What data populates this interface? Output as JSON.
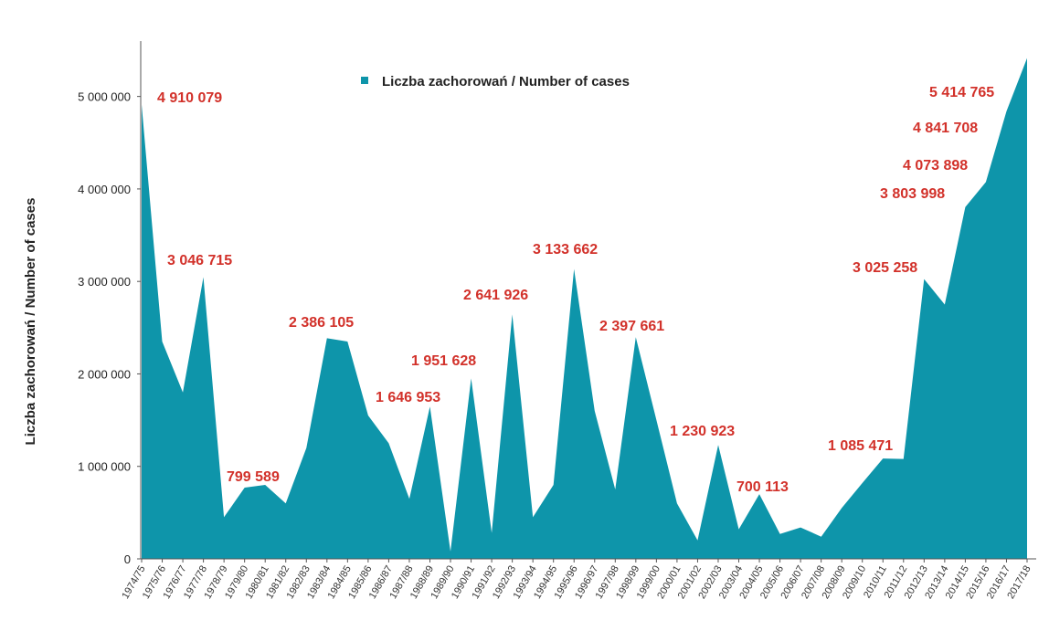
{
  "colors": {
    "area": "#0e95aa",
    "label": "#d2312a",
    "axis": "#555555"
  },
  "legend": {
    "label": "Liczba zachorowań / Number of cases"
  },
  "ylabel": "Liczba zachorowań  /  Number of cases",
  "chart_data": {
    "type": "area",
    "title": "",
    "xlabel": "",
    "ylabel": "Liczba zachorowań  /  Number of cases",
    "ylim": [
      0,
      5500000
    ],
    "yticks": [
      0,
      1000000,
      2000000,
      3000000,
      4000000,
      5000000
    ],
    "ytick_labels": [
      "0",
      "1 000 000",
      "2 000 000",
      "3 000 000",
      "4 000 000",
      "5 000 000"
    ],
    "grid": false,
    "legend_placement": "top-center",
    "x": [
      "1974/75",
      "1975/76",
      "1976/77",
      "1977/78",
      "1978/79",
      "1979/80",
      "1980/81",
      "1981/82",
      "1982/83",
      "1983/84",
      "1984/85",
      "1985/86",
      "1986/87",
      "1987/88",
      "1988/89",
      "1989/90",
      "1990/91",
      "1991/92",
      "1992/93",
      "1993/94",
      "1994/95",
      "1995/96",
      "1996/97",
      "1997/98",
      "1998/99",
      "1999/00",
      "2000/01",
      "2001/02",
      "2002/03",
      "2003/04",
      "2004/05",
      "2005/06",
      "2006/07",
      "2007/08",
      "2008/09",
      "2009/10",
      "2010/11",
      "2011/12",
      "2012/13",
      "2013/14",
      "2014/15",
      "2015/16",
      "2016/17",
      "2017/18"
    ],
    "series": [
      {
        "name": "Liczba zachorowań / Number of cases",
        "values": [
          4910079,
          2350000,
          1800000,
          3046715,
          450000,
          770000,
          799589,
          600000,
          1200000,
          2386105,
          2350000,
          1550000,
          1250000,
          650000,
          1646953,
          80000,
          1951628,
          280000,
          2641926,
          450000,
          800000,
          3133662,
          1600000,
          750000,
          2397661,
          1500000,
          600000,
          200000,
          1230923,
          320000,
          700113,
          270000,
          340000,
          240000,
          550000,
          820000,
          1085471,
          1080000,
          3025258,
          2750000,
          3803998,
          4073898,
          4841708,
          5414765
        ]
      }
    ],
    "annotations": [
      {
        "index": 0,
        "text": "4 910 079"
      },
      {
        "index": 3,
        "text": "3 046 715"
      },
      {
        "index": 6,
        "text": "799 589"
      },
      {
        "index": 9,
        "text": "2 386 105"
      },
      {
        "index": 14,
        "text": "1 646 953"
      },
      {
        "index": 16,
        "text": "1 951 628"
      },
      {
        "index": 18,
        "text": "2 641 926"
      },
      {
        "index": 21,
        "text": "3 133 662"
      },
      {
        "index": 24,
        "text": "2 397 661"
      },
      {
        "index": 28,
        "text": "1 230 923"
      },
      {
        "index": 30,
        "text": "700 113"
      },
      {
        "index": 36,
        "text": "1 085 471"
      },
      {
        "index": 38,
        "text": "3 025 258"
      },
      {
        "index": 40,
        "text": "3 803 998"
      },
      {
        "index": 41,
        "text": "4 073 898"
      },
      {
        "index": 42,
        "text": "4 841 708"
      },
      {
        "index": 43,
        "text": "5 414 765"
      }
    ]
  }
}
